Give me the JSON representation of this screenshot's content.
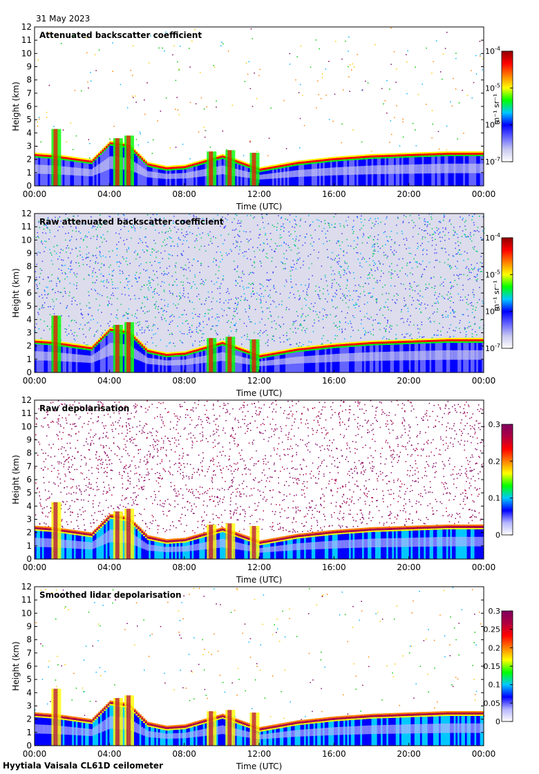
{
  "date": "31 May 2023",
  "footer": "Hyytiala Vaisala CL61D ceilometer",
  "chart_data": [
    {
      "type": "heatmap",
      "title": "Attenuated backscatter coefficient",
      "xlabel": "Time (UTC)",
      "ylabel": "Height (km)",
      "xlim": [
        0,
        24
      ],
      "ylim": [
        0,
        12
      ],
      "xtick_labels": [
        "00:00",
        "04:00",
        "08:00",
        "12:00",
        "16:00",
        "20:00",
        "00:00"
      ],
      "ytick_labels": [
        "0",
        "1",
        "2",
        "3",
        "4",
        "5",
        "6",
        "7",
        "8",
        "9",
        "10",
        "11",
        "12"
      ],
      "colorbar": {
        "scale": "log",
        "range": [
          1e-07,
          0.0001
        ],
        "label": "m⁻¹ sr⁻¹",
        "ticks": [
          {
            "value": 0.0001,
            "base": "10",
            "exp": "-4"
          },
          {
            "value": 1e-05,
            "base": "10",
            "exp": "-5"
          },
          {
            "value": 1e-06,
            "base": "10",
            "exp": "-6"
          },
          {
            "value": 1e-07,
            "base": "10",
            "exp": "-7"
          }
        ],
        "colormap": "rainbow"
      },
      "cloud_top_km": [
        [
          0,
          2.3
        ],
        [
          1,
          2.2
        ],
        [
          2,
          2.0
        ],
        [
          3,
          1.8
        ],
        [
          4,
          3.2
        ],
        [
          5,
          3.0
        ],
        [
          6,
          1.6
        ],
        [
          7,
          1.3
        ],
        [
          8,
          1.4
        ],
        [
          10,
          2.2
        ],
        [
          12,
          1.2
        ],
        [
          14,
          1.7
        ],
        [
          16,
          2.0
        ],
        [
          18,
          2.2
        ],
        [
          20,
          2.3
        ],
        [
          22,
          2.4
        ],
        [
          24,
          2.4
        ]
      ],
      "background": "white"
    },
    {
      "type": "heatmap",
      "title": "Raw attenuated backscatter coefficient",
      "xlabel": "Time (UTC)",
      "ylabel": "Height (km)",
      "xlim": [
        0,
        24
      ],
      "ylim": [
        0,
        12
      ],
      "xtick_labels": [
        "00:00",
        "04:00",
        "08:00",
        "12:00",
        "16:00",
        "20:00",
        "00:00"
      ],
      "ytick_labels": [
        "0",
        "1",
        "2",
        "3",
        "4",
        "5",
        "6",
        "7",
        "8",
        "9",
        "10",
        "11",
        "12"
      ],
      "colorbar": {
        "scale": "log",
        "range": [
          1e-07,
          0.0001
        ],
        "label": "m⁻¹ sr⁻¹",
        "ticks": [
          {
            "value": 0.0001,
            "base": "10",
            "exp": "-4"
          },
          {
            "value": 1e-05,
            "base": "10",
            "exp": "-5"
          },
          {
            "value": 1e-06,
            "base": "10",
            "exp": "-6"
          },
          {
            "value": 1e-07,
            "base": "10",
            "exp": "-7"
          }
        ],
        "colormap": "rainbow"
      },
      "cloud_top_km": [
        [
          0,
          2.3
        ],
        [
          1,
          2.2
        ],
        [
          2,
          2.0
        ],
        [
          3,
          1.8
        ],
        [
          4,
          3.2
        ],
        [
          5,
          3.0
        ],
        [
          6,
          1.6
        ],
        [
          7,
          1.3
        ],
        [
          8,
          1.4
        ],
        [
          10,
          2.2
        ],
        [
          12,
          1.2
        ],
        [
          14,
          1.7
        ],
        [
          16,
          2.0
        ],
        [
          18,
          2.2
        ],
        [
          20,
          2.3
        ],
        [
          22,
          2.4
        ],
        [
          24,
          2.4
        ]
      ],
      "background": "noisy"
    },
    {
      "type": "heatmap",
      "title": "Raw depolarisation",
      "xlabel": "Time (UTC)",
      "ylabel": "Height (km)",
      "xlim": [
        0,
        24
      ],
      "ylim": [
        0,
        12
      ],
      "xtick_labels": [
        "00:00",
        "04:00",
        "08:00",
        "12:00",
        "16:00",
        "20:00",
        "00:00"
      ],
      "ytick_labels": [
        "0",
        "1",
        "2",
        "3",
        "4",
        "5",
        "6",
        "7",
        "8",
        "9",
        "10",
        "11",
        "12"
      ],
      "colorbar": {
        "scale": "linear",
        "range": [
          0,
          0.3
        ],
        "label": "",
        "ticks": [
          {
            "value": 0.3,
            "base": "0.3",
            "exp": ""
          },
          {
            "value": 0.2,
            "base": "0.2",
            "exp": ""
          },
          {
            "value": 0.1,
            "base": "0.1",
            "exp": ""
          },
          {
            "value": 0,
            "base": "0",
            "exp": ""
          }
        ],
        "colormap": "rainbow-purple"
      },
      "cloud_top_km": [
        [
          0,
          2.3
        ],
        [
          1,
          2.2
        ],
        [
          2,
          2.0
        ],
        [
          3,
          1.8
        ],
        [
          4,
          3.2
        ],
        [
          5,
          3.0
        ],
        [
          6,
          1.6
        ],
        [
          7,
          1.3
        ],
        [
          8,
          1.4
        ],
        [
          10,
          2.2
        ],
        [
          12,
          1.2
        ],
        [
          14,
          1.7
        ],
        [
          16,
          2.0
        ],
        [
          18,
          2.2
        ],
        [
          20,
          2.3
        ],
        [
          22,
          2.4
        ],
        [
          24,
          2.4
        ]
      ],
      "background": "purple-noise"
    },
    {
      "type": "heatmap",
      "title": "Smoothed lidar depolarisation",
      "xlabel": "Time (UTC)",
      "ylabel": "Height (km)",
      "xlim": [
        0,
        24
      ],
      "ylim": [
        0,
        12
      ],
      "xtick_labels": [
        "00:00",
        "04:00",
        "08:00",
        "12:00",
        "16:00",
        "20:00",
        "00:00"
      ],
      "ytick_labels": [
        "0",
        "1",
        "2",
        "3",
        "4",
        "5",
        "6",
        "7",
        "8",
        "9",
        "10",
        "11",
        "12"
      ],
      "colorbar": {
        "scale": "linear",
        "range": [
          0,
          0.3
        ],
        "label": "",
        "ticks": [
          {
            "value": 0.3,
            "base": "0.3",
            "exp": ""
          },
          {
            "value": 0.25,
            "base": "0.25",
            "exp": ""
          },
          {
            "value": 0.2,
            "base": "0.2",
            "exp": ""
          },
          {
            "value": 0.15,
            "base": "0.15",
            "exp": ""
          },
          {
            "value": 0.1,
            "base": "0.1",
            "exp": ""
          },
          {
            "value": 0.05,
            "base": "0.05",
            "exp": ""
          },
          {
            "value": 0,
            "base": "0",
            "exp": ""
          }
        ],
        "colormap": "rainbow-purple"
      },
      "cloud_top_km": [
        [
          0,
          2.3
        ],
        [
          1,
          2.2
        ],
        [
          2,
          2.0
        ],
        [
          3,
          1.8
        ],
        [
          4,
          3.2
        ],
        [
          5,
          3.0
        ],
        [
          6,
          1.6
        ],
        [
          7,
          1.3
        ],
        [
          8,
          1.4
        ],
        [
          10,
          2.2
        ],
        [
          12,
          1.2
        ],
        [
          14,
          1.7
        ],
        [
          16,
          2.0
        ],
        [
          18,
          2.2
        ],
        [
          20,
          2.3
        ],
        [
          22,
          2.4
        ],
        [
          24,
          2.4
        ]
      ],
      "background": "white"
    }
  ]
}
